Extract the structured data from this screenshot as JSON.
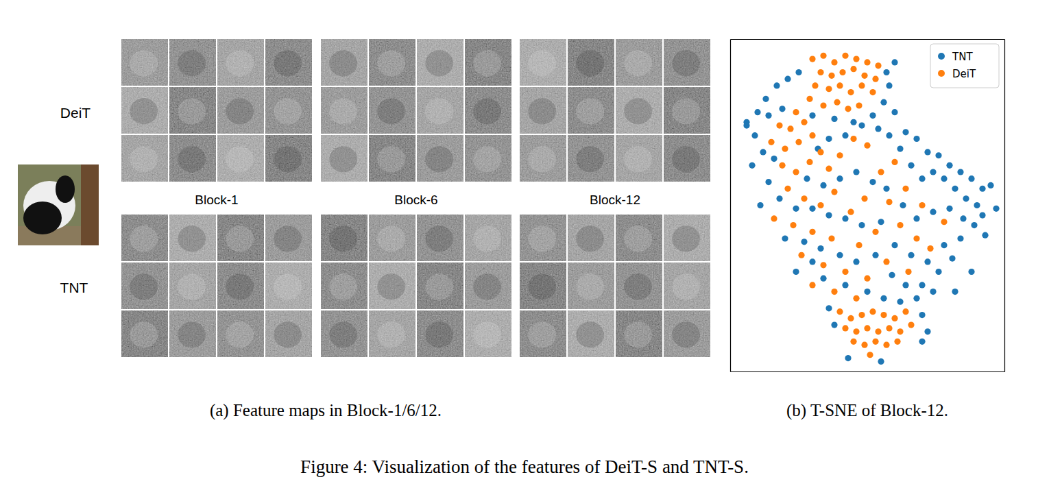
{
  "caption": "Figure 4: Visualization of the features of DeiT-S and TNT-S.",
  "panel_a": {
    "caption": "(a) Feature maps in Block-1/6/12.",
    "row_labels": [
      "DeiT",
      "TNT"
    ],
    "block_labels": [
      "Block-1",
      "Block-6",
      "Block-12"
    ]
  },
  "chart_data": {
    "type": "scatter",
    "title": "(b) T-SNE of Block-12.",
    "xlim": [
      0,
      100
    ],
    "ylim": [
      0,
      100
    ],
    "xticks": [],
    "yticks": [],
    "tick_labels": false,
    "legend": "upper right",
    "marker": "circle",
    "series": [
      {
        "name": "TNT",
        "color": "#1f77b4",
        "x": [
          10,
          6,
          13,
          17,
          21,
          25,
          57,
          60,
          58,
          14,
          19,
          9,
          12,
          16,
          8,
          6,
          30,
          38,
          45,
          52,
          56,
          60,
          64,
          68,
          72,
          76,
          80,
          84,
          88,
          92,
          95,
          90,
          86,
          82,
          78,
          74,
          70,
          66,
          62,
          58,
          54,
          48,
          42,
          36,
          32,
          28,
          34,
          40,
          46,
          52,
          57,
          63,
          68,
          74,
          80,
          85,
          89,
          92,
          84,
          78,
          72,
          66,
          60,
          55,
          48,
          42,
          36,
          30,
          24,
          18,
          14,
          20,
          27,
          33,
          40,
          46,
          53,
          59,
          64,
          70,
          76,
          81,
          88,
          34,
          42,
          50,
          56,
          62,
          68,
          74,
          36,
          70,
          72,
          38,
          55,
          43,
          70,
          24,
          30,
          82,
          93,
          97,
          11
        ],
        "values": [
          78,
          75,
          82,
          86,
          88,
          90,
          90,
          93,
          86,
          77,
          79,
          71,
          66,
          64,
          62,
          74,
          77,
          76,
          75,
          77,
          81,
          78,
          72,
          70,
          66,
          65,
          62,
          60,
          58,
          55,
          56,
          50,
          52,
          55,
          58,
          60,
          58,
          62,
          67,
          71,
          73,
          74,
          71,
          70,
          67,
          58,
          56,
          58,
          60,
          57,
          55,
          50,
          46,
          48,
          49,
          46,
          44,
          47,
          40,
          38,
          33,
          35,
          38,
          45,
          44,
          46,
          47,
          49,
          49,
          52,
          57,
          40,
          39,
          37,
          35,
          33,
          35,
          29,
          26,
          26,
          30,
          34,
          30,
          28,
          26,
          24,
          22,
          21,
          22,
          24,
          19,
          17,
          12,
          14,
          3,
          4,
          9,
          30,
          33,
          24,
          41,
          49,
          50
        ]
      },
      {
        "name": "DeiT",
        "color": "#ff7f0e",
        "x": [
          30,
          34,
          38,
          42,
          46,
          50,
          54,
          33,
          37,
          41,
          45,
          49,
          53,
          31,
          36,
          40,
          44,
          48,
          52,
          29,
          34,
          39,
          43,
          47,
          24,
          18,
          22,
          27,
          15,
          20,
          25,
          30,
          33,
          19,
          24,
          29,
          36,
          40,
          45,
          50,
          55,
          60,
          21,
          27,
          33,
          38,
          44,
          49,
          58,
          64,
          70,
          16,
          23,
          30,
          37,
          47,
          53,
          62,
          68,
          26,
          34,
          42,
          50,
          57,
          65,
          73,
          78,
          30,
          38,
          46,
          40,
          44,
          48,
          52,
          56,
          60,
          64,
          42,
          46,
          50,
          54,
          58,
          62,
          66,
          45,
          49,
          53,
          57,
          61,
          51
        ],
        "values": [
          94,
          95,
          93,
          95,
          94,
          93,
          92,
          90,
          89,
          90,
          91,
          89,
          88,
          86,
          85,
          86,
          84,
          86,
          84,
          82,
          80,
          81,
          79,
          80,
          78,
          74,
          73,
          75,
          69,
          67,
          69,
          71,
          66,
          62,
          60,
          63,
          61,
          65,
          70,
          68,
          60,
          63,
          55,
          52,
          50,
          54,
          48,
          52,
          51,
          55,
          50,
          46,
          44,
          42,
          40,
          38,
          42,
          44,
          40,
          35,
          32,
          30,
          28,
          33,
          30,
          37,
          45,
          26,
          24,
          22,
          18,
          16,
          17,
          18,
          17,
          16,
          18,
          13,
          12,
          13,
          12,
          13,
          12,
          14,
          9,
          8,
          9,
          8,
          9,
          5
        ]
      }
    ]
  }
}
